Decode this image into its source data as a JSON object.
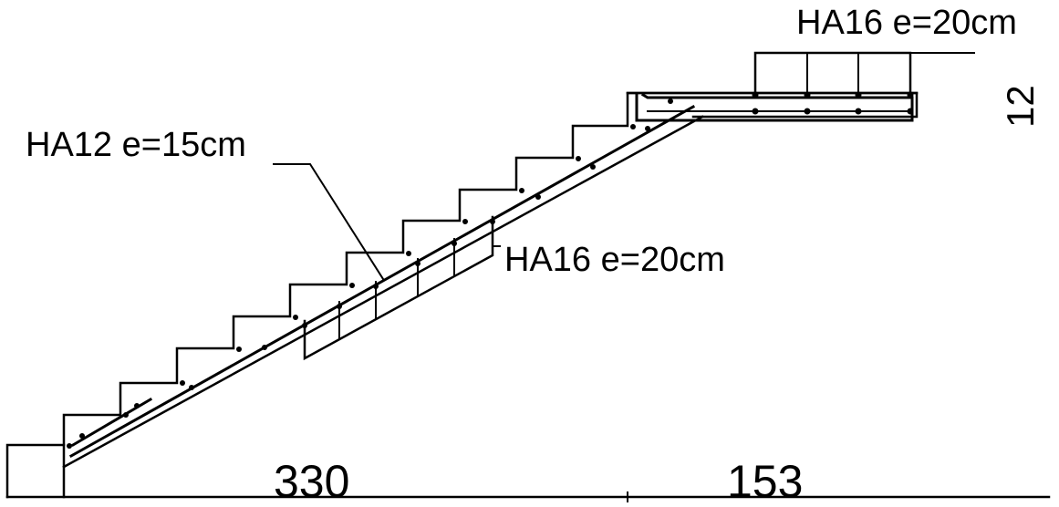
{
  "colors": {
    "line": "#000000",
    "background": "#ffffff"
  },
  "annotations": {
    "landing_bars": "HA16 e=20cm",
    "main_bars": "HA12 e=15cm",
    "distribution_bars": "HA16 e=20cm"
  },
  "dimensions": {
    "flight_length": "330",
    "landing_length": "153",
    "landing_thickness": "12"
  }
}
